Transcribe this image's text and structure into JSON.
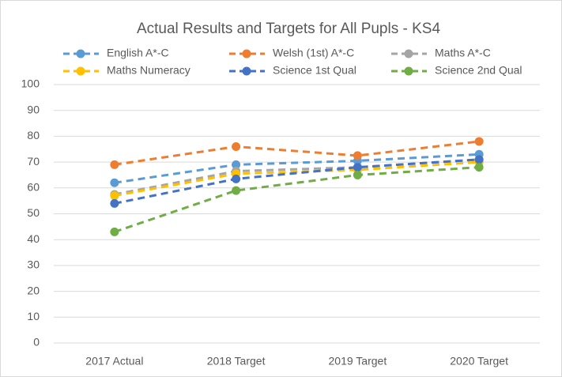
{
  "chart_data": {
    "type": "line",
    "title": "Actual Results and Targets for All Pupls - KS4",
    "categories": [
      "2017 Actual",
      "2018 Target",
      "2019 Target",
      "2020 Target"
    ],
    "series": [
      {
        "name": "English A*-C",
        "color": "#5b9bd5",
        "values": [
          62,
          69,
          70.5,
          73
        ]
      },
      {
        "name": "Welsh (1st) A*-C",
        "color": "#ed7d31",
        "values": [
          69,
          76,
          72.5,
          78
        ]
      },
      {
        "name": "Maths A*-C",
        "color": "#a5a5a5",
        "values": [
          57.5,
          66.5,
          68,
          71
        ]
      },
      {
        "name": "Maths Numeracy",
        "color": "#ffc000",
        "values": [
          57,
          65.5,
          67,
          70
        ]
      },
      {
        "name": "Science 1st Qual",
        "color": "#4472c4",
        "values": [
          54,
          63.5,
          68,
          71
        ]
      },
      {
        "name": "Science 2nd Qual",
        "color": "#70ad47",
        "values": [
          43,
          59,
          65,
          68
        ]
      }
    ],
    "ylim": [
      0,
      100
    ],
    "yticks": [
      0,
      10,
      20,
      30,
      40,
      50,
      60,
      70,
      80,
      90,
      100
    ],
    "grid": true,
    "legend": "top"
  }
}
